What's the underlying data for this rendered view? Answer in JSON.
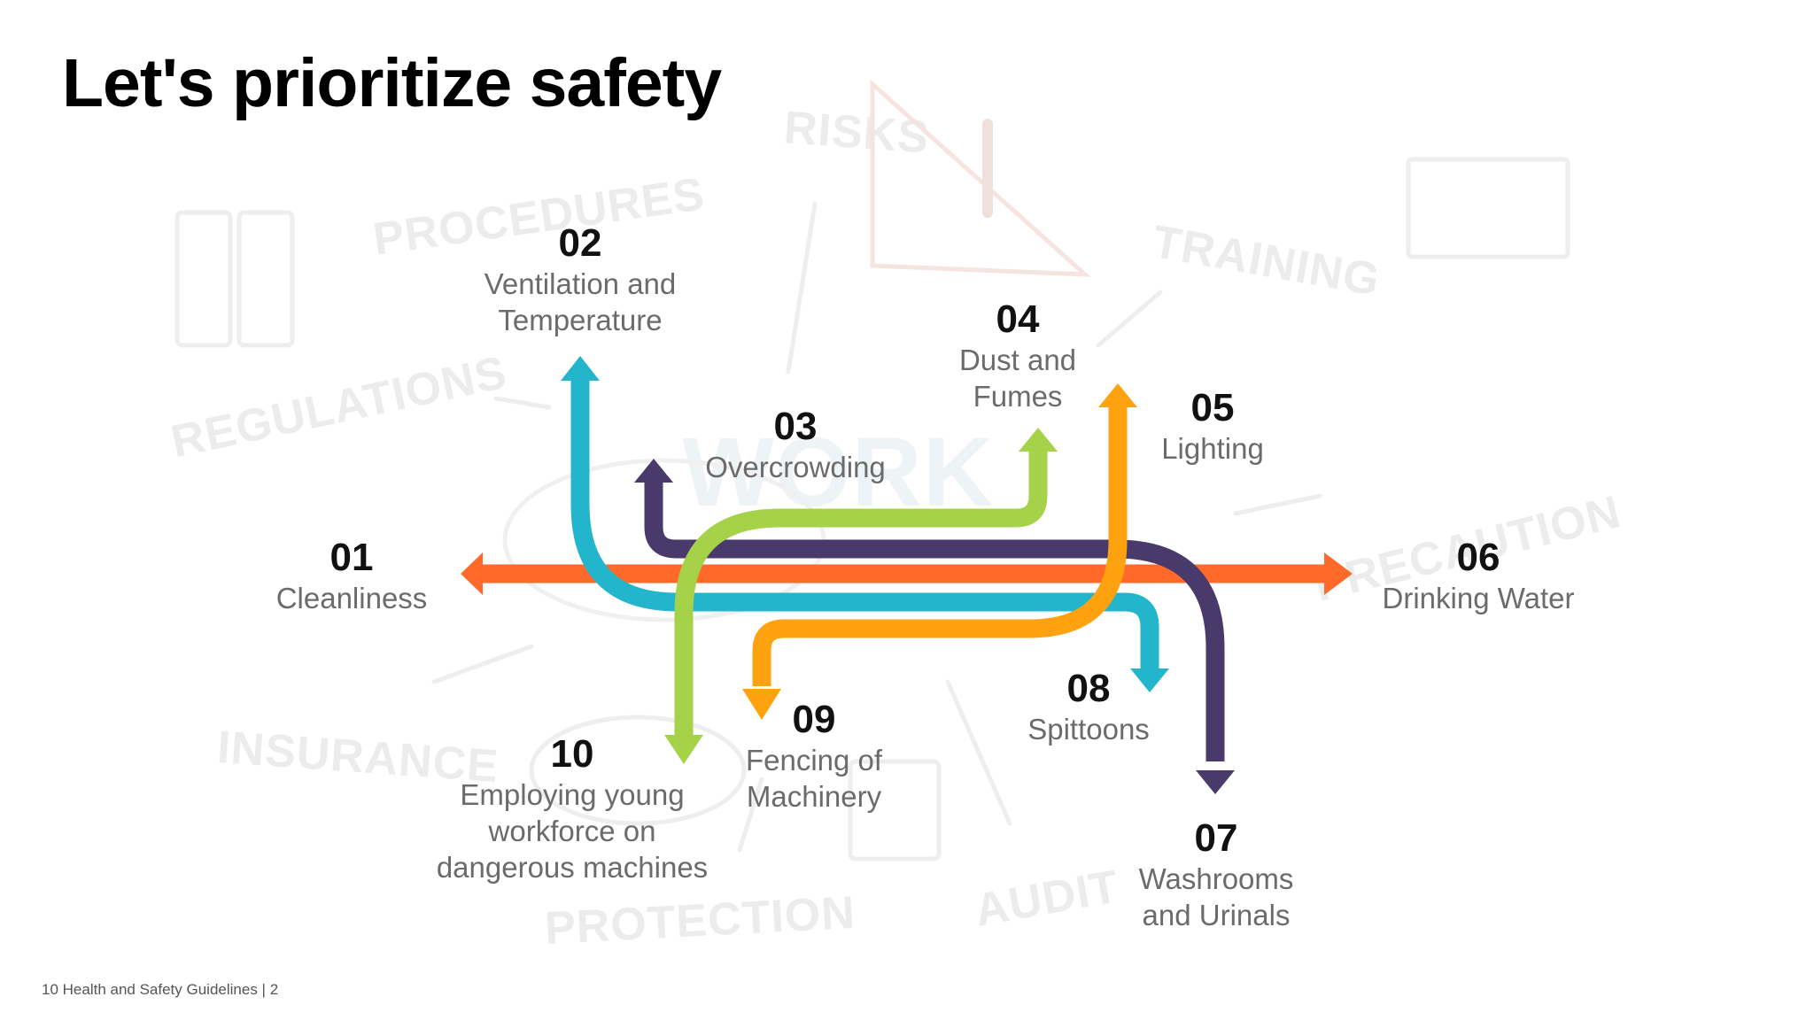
{
  "slide": {
    "title": "Let's prioritize safety",
    "footer": "10 Health and Safety Guidelines  |  2"
  },
  "background_words": [
    "RISKS",
    "PROCEDURES",
    "TRAINING",
    "REGULATIONS",
    "WORK",
    "PRECAUTION",
    "INSURANCE",
    "PROTECTION",
    "AUDIT"
  ],
  "items": [
    {
      "num": "01",
      "text": "Cleanliness",
      "color": "#ff6a2b"
    },
    {
      "num": "02",
      "text": "Ventilation and Temperature",
      "color": "#23b5cc"
    },
    {
      "num": "03",
      "text": "Overcrowding",
      "color": "#4a3a6b"
    },
    {
      "num": "04",
      "text": "Dust and Fumes",
      "color": "#a6d24a"
    },
    {
      "num": "05",
      "text": "Lighting",
      "color": "#ffa20f"
    },
    {
      "num": "06",
      "text": "Drinking Water",
      "color": "#ff6a2b"
    },
    {
      "num": "07",
      "text": "Washrooms and Urinals",
      "color": "#4a3a6b"
    },
    {
      "num": "08",
      "text": "Spittoons",
      "color": "#23b5cc"
    },
    {
      "num": "09",
      "text": "Fencing of Machinery",
      "color": "#ffa20f"
    },
    {
      "num": "10",
      "text": "Employing young workforce on dangerous machines",
      "color": "#a6d24a"
    }
  ]
}
